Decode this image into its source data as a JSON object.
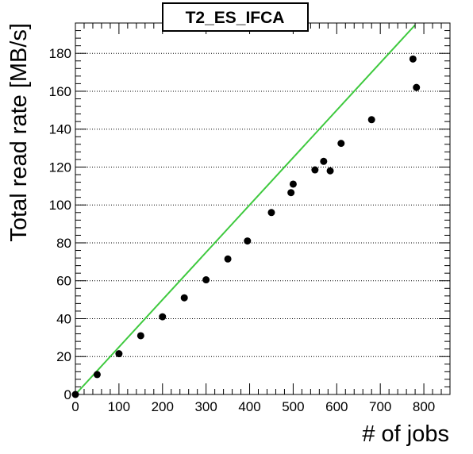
{
  "chart_data": {
    "type": "scatter",
    "title": "T2_ES_IFCA",
    "xlabel": "# of jobs",
    "ylabel": "Total read rate [MB/s]",
    "xlim": [
      0,
      860
    ],
    "ylim": [
      0,
      196
    ],
    "x_ticks": [
      0,
      100,
      200,
      300,
      400,
      500,
      600,
      700,
      800
    ],
    "y_ticks": [
      0,
      20,
      40,
      60,
      80,
      100,
      120,
      140,
      160,
      180
    ],
    "grid": "horizontal-dotted",
    "series": [
      {
        "points": [
          [
            0,
            0
          ],
          [
            50,
            10.5
          ],
          [
            100,
            21.5
          ],
          [
            150,
            31
          ],
          [
            200,
            41
          ],
          [
            250,
            51
          ],
          [
            300,
            60.5
          ],
          [
            350,
            71.5
          ],
          [
            395,
            81
          ],
          [
            450,
            96
          ],
          [
            495,
            106.5
          ],
          [
            500,
            111
          ],
          [
            550,
            118.5
          ],
          [
            570,
            123
          ],
          [
            585,
            118
          ],
          [
            610,
            132.5
          ],
          [
            680,
            145
          ],
          [
            775,
            177
          ],
          [
            783,
            162
          ]
        ],
        "color": "#000000"
      }
    ],
    "reference_line": {
      "x": [
        0,
        780
      ],
      "y": [
        0,
        195
      ],
      "color": "#3ec93e"
    }
  }
}
